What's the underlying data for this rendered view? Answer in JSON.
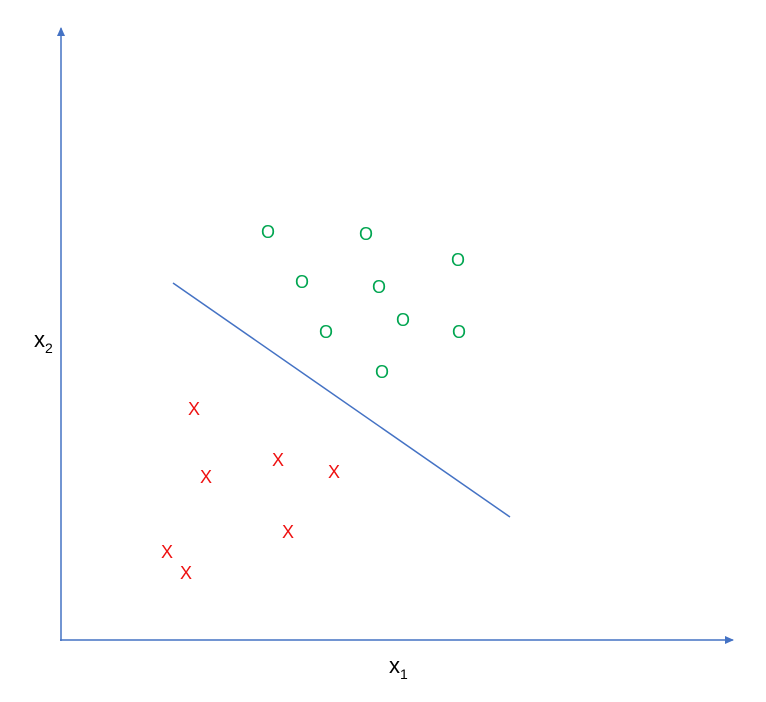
{
  "axes": {
    "x_label": "x",
    "x_subscript": "1",
    "y_label": "x",
    "y_subscript": "2"
  },
  "markers": {
    "positive": "O",
    "negative": "X"
  }
}
